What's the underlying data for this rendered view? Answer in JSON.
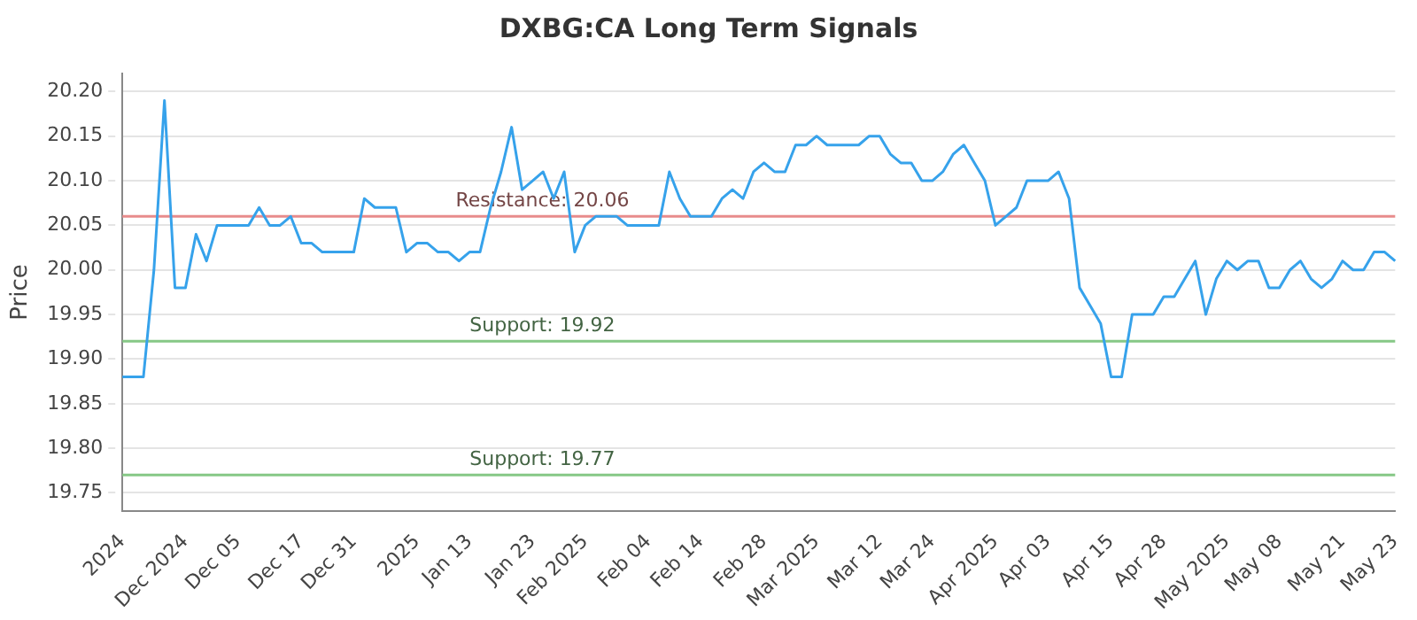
{
  "chart_data": {
    "type": "line",
    "title": "DXBG:CA Long Term Signals",
    "ylabel": "Price",
    "categories": [
      "2024",
      null,
      null,
      null,
      null,
      null,
      "Dec 2024",
      null,
      null,
      null,
      null,
      "Dec 05",
      null,
      null,
      null,
      null,
      null,
      "Dec 17",
      null,
      null,
      null,
      null,
      "Dec 31",
      null,
      null,
      null,
      null,
      null,
      "2025",
      null,
      null,
      null,
      null,
      "Jan 13",
      null,
      null,
      null,
      null,
      null,
      "Jan 23",
      null,
      null,
      null,
      null,
      "Feb 2025",
      null,
      null,
      null,
      null,
      null,
      "Feb 04",
      null,
      null,
      null,
      null,
      "Feb 14",
      null,
      null,
      null,
      null,
      null,
      "Feb 28",
      null,
      null,
      null,
      null,
      "Mar 2025",
      null,
      null,
      null,
      null,
      null,
      "Mar 12",
      null,
      null,
      null,
      null,
      "Mar 24",
      null,
      null,
      null,
      null,
      null,
      "Apr 2025",
      null,
      null,
      null,
      null,
      "Apr 03",
      null,
      null,
      null,
      null,
      null,
      "Apr 15",
      null,
      null,
      null,
      null,
      "Apr 28",
      null,
      null,
      null,
      null,
      null,
      "May 2025",
      null,
      null,
      null,
      null,
      "May 08",
      null,
      null,
      null,
      null,
      null,
      "May 21",
      null,
      null,
      null,
      null,
      "May 23"
    ],
    "series": [
      {
        "color": "#36a2eb",
        "values": [
          19.88,
          19.88,
          19.88,
          20.0,
          20.19,
          19.98,
          19.98,
          20.04,
          20.01,
          20.05,
          20.05,
          20.05,
          20.05,
          20.07,
          20.05,
          20.05,
          20.06,
          20.03,
          20.03,
          20.02,
          20.02,
          20.02,
          20.02,
          20.08,
          20.07,
          20.07,
          20.07,
          20.02,
          20.03,
          20.03,
          20.02,
          20.02,
          20.01,
          20.02,
          20.02,
          20.07,
          20.11,
          20.16,
          20.09,
          20.1,
          20.11,
          20.08,
          20.11,
          20.02,
          20.05,
          20.06,
          20.06,
          20.06,
          20.05,
          20.05,
          20.05,
          20.05,
          20.11,
          20.08,
          20.06,
          20.06,
          20.06,
          20.08,
          20.09,
          20.08,
          20.11,
          20.12,
          20.11,
          20.11,
          20.14,
          20.14,
          20.15,
          20.14,
          20.14,
          20.14,
          20.14,
          20.15,
          20.15,
          20.13,
          20.12,
          20.12,
          20.1,
          20.1,
          20.11,
          20.13,
          20.14,
          20.12,
          20.1,
          20.05,
          20.06,
          20.07,
          20.1,
          20.1,
          20.1,
          20.11,
          20.08,
          19.98,
          19.96,
          19.94,
          19.88,
          19.88,
          19.95,
          19.95,
          19.95,
          19.97,
          19.97,
          19.99,
          20.01,
          19.95,
          19.99,
          20.01,
          20.0,
          20.01,
          20.01,
          19.98,
          19.98,
          20.0,
          20.01,
          19.99,
          19.98,
          19.99,
          20.01,
          20.0,
          20.0,
          20.02,
          20.02,
          20.01
        ]
      }
    ],
    "ylim": [
      19.73,
      20.22
    ],
    "yticks": [
      19.75,
      {
        "value": 19.8,
        "label": "19.80"
      },
      19.85,
      {
        "value": 19.9,
        "label": "19.90"
      },
      19.95,
      {
        "value": 20.0,
        "label": "20.00"
      },
      20.05,
      {
        "value": 20.1,
        "label": "20.10"
      },
      20.15,
      {
        "value": 20.2,
        "label": "20.20"
      }
    ],
    "ref_lines": [
      {
        "axis": "y",
        "value": 20.06,
        "label": "Resistance: 20.06",
        "color": "#e88c8c"
      },
      {
        "axis": "y",
        "value": 19.92,
        "label": "Support: 19.92",
        "color": "#86c886"
      },
      {
        "axis": "y",
        "value": 19.77,
        "label": "Support: 19.77",
        "color": "#86c886"
      }
    ],
    "grid": "y",
    "legend": false,
    "marker": "none",
    "line_style": "solid"
  }
}
